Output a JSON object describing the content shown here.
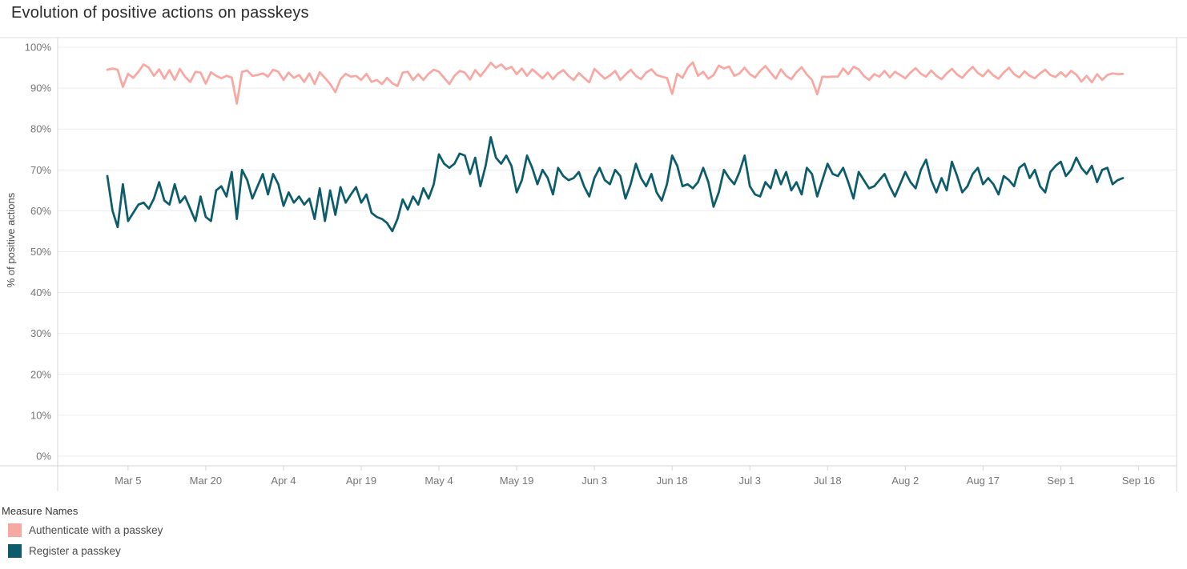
{
  "title": "Evolution of positive actions on passkeys",
  "legend": {
    "title": "Measure Names",
    "items": [
      {
        "label": "Authenticate with a passkey",
        "color": "#F8A8A2"
      },
      {
        "label": "Register a passkey",
        "color": "#0C5C6B"
      }
    ]
  },
  "chart_data": {
    "type": "line",
    "title": "Evolution of positive actions on passkeys",
    "xlabel": "",
    "ylabel": "% of positive actions",
    "ylim": [
      0,
      100
    ],
    "ytick_step": 10,
    "ytick_format": "percent",
    "grid": "horizontal",
    "legend_position": "bottom-left",
    "x_start_date": "Mar 1",
    "x_end_date": "Sep 13",
    "x_first_tick_day_offset": 4,
    "x_tick_interval_days": 15,
    "x_tick_labels": [
      "Mar 5",
      "Mar 20",
      "Apr 4",
      "Apr 19",
      "May 4",
      "May 19",
      "Jun 3",
      "Jun 18",
      "Jul 3",
      "Jul 18",
      "Aug 2",
      "Aug 17",
      "Sep 1",
      "Sep 16"
    ],
    "series": [
      {
        "name": "Authenticate with a passkey",
        "color": "#F8A8A2",
        "values": [
          94.5,
          94.8,
          94.5,
          90.3,
          93.5,
          92.5,
          94.0,
          95.8,
          95.0,
          93.0,
          94.6,
          92.3,
          94.4,
          92.0,
          94.7,
          92.8,
          91.5,
          94.0,
          93.8,
          91.1,
          93.9,
          93.0,
          92.4,
          93.0,
          92.6,
          86.2,
          94.0,
          94.3,
          93.0,
          93.2,
          93.6,
          92.8,
          94.5,
          94.0,
          92.0,
          93.8,
          92.5,
          93.2,
          91.5,
          93.6,
          91.0,
          93.9,
          92.5,
          91.0,
          89.0,
          92.2,
          93.5,
          92.8,
          93.0,
          92.0,
          93.5,
          91.5,
          92.0,
          91.0,
          92.5,
          91.2,
          90.5,
          93.8,
          94.0,
          92.0,
          93.4,
          92.0,
          93.5,
          94.5,
          94.0,
          92.5,
          91.0,
          93.0,
          94.2,
          93.8,
          92.1,
          94.4,
          92.9,
          94.5,
          96.2,
          95.0,
          95.8,
          94.6,
          95.2,
          93.4,
          94.8,
          93.0,
          94.6,
          93.5,
          92.4,
          93.8,
          92.2,
          93.6,
          94.4,
          93.0,
          92.0,
          93.7,
          92.5,
          91.4,
          94.7,
          93.5,
          92.3,
          93.1,
          94.2,
          92.0,
          93.3,
          94.5,
          93.0,
          92.2,
          93.8,
          94.6,
          93.2,
          92.8,
          92.5,
          88.6,
          93.5,
          92.5,
          95.0,
          96.3,
          93.0,
          94.0,
          92.3,
          93.2,
          95.5,
          94.8,
          95.3,
          93.0,
          93.6,
          95.0,
          93.4,
          92.6,
          94.2,
          95.4,
          93.8,
          92.3,
          94.6,
          93.0,
          92.2,
          93.9,
          95.1,
          93.3,
          92.0,
          88.5,
          92.8,
          92.7,
          92.8,
          92.8,
          94.8,
          93.4,
          95.2,
          94.6,
          93.0,
          92.0,
          93.4,
          92.8,
          94.2,
          92.6,
          94.0,
          93.2,
          92.4,
          93.8,
          94.9,
          93.5,
          92.8,
          94.3,
          93.0,
          92.2,
          93.6,
          94.7,
          93.3,
          92.5,
          94.0,
          95.2,
          93.7,
          92.9,
          94.4,
          93.1,
          92.3,
          93.8,
          95.0,
          93.4,
          92.6,
          94.1,
          93.0,
          92.4,
          93.6,
          94.5,
          93.2,
          92.7,
          93.9,
          92.8,
          94.2,
          93.3,
          91.6,
          93.0,
          91.4,
          93.4,
          92.0,
          93.2,
          93.6,
          93.4,
          93.5
        ]
      },
      {
        "name": "Register a passkey",
        "color": "#0C5C6B",
        "values": [
          68.5,
          60.0,
          56.0,
          66.5,
          57.5,
          59.5,
          61.5,
          62.0,
          60.5,
          63.0,
          67.0,
          62.5,
          61.5,
          66.5,
          62.0,
          63.5,
          60.5,
          57.5,
          63.5,
          58.5,
          57.5,
          65.0,
          66.0,
          63.5,
          69.5,
          58.0,
          70.0,
          67.5,
          63.0,
          66.0,
          69.0,
          64.0,
          69.0,
          66.5,
          61.2,
          64.5,
          62.0,
          63.5,
          61.5,
          63.0,
          58.0,
          65.5,
          57.5,
          65.0,
          59.0,
          65.8,
          62.0,
          64.0,
          65.8,
          62.0,
          64.0,
          59.5,
          58.5,
          58.0,
          57.0,
          55.0,
          58.0,
          62.8,
          60.3,
          63.5,
          61.5,
          65.5,
          63.0,
          66.5,
          73.8,
          71.5,
          70.5,
          71.5,
          74.0,
          73.5,
          69.0,
          73.0,
          66.0,
          71.0,
          78.0,
          73.0,
          71.5,
          73.5,
          71.0,
          64.5,
          67.5,
          73.5,
          70.5,
          66.5,
          70.0,
          68.0,
          64.0,
          70.5,
          68.5,
          67.5,
          68.0,
          69.5,
          66.0,
          63.5,
          68.0,
          70.5,
          67.5,
          66.5,
          70.0,
          68.5,
          63.0,
          66.5,
          71.5,
          68.0,
          66.0,
          69.0,
          64.5,
          62.5,
          66.5,
          73.5,
          71.0,
          66.0,
          66.5,
          65.5,
          67.0,
          70.5,
          67.0,
          61.0,
          64.5,
          70.0,
          68.0,
          66.5,
          69.5,
          73.5,
          66.0,
          64.0,
          63.5,
          67.0,
          65.5,
          70.0,
          66.5,
          69.5,
          65.0,
          67.0,
          64.0,
          70.5,
          69.0,
          63.5,
          67.5,
          71.5,
          69.0,
          68.5,
          70.5,
          67.0,
          63.0,
          69.5,
          67.5,
          65.5,
          66.0,
          67.5,
          69.0,
          66.0,
          63.5,
          66.5,
          69.5,
          67.0,
          65.5,
          70.0,
          72.5,
          67.5,
          64.5,
          68.0,
          65.0,
          72.0,
          68.5,
          64.5,
          66.0,
          69.0,
          70.5,
          66.5,
          68.0,
          66.5,
          64.0,
          68.5,
          67.5,
          66.0,
          70.5,
          71.5,
          68.0,
          70.0,
          66.0,
          64.5,
          69.5,
          71.0,
          72.0,
          68.5,
          70.0,
          73.0,
          70.5,
          69.0,
          71.0,
          67.0,
          70.0,
          70.5,
          66.5,
          67.5,
          68.0
        ]
      }
    ]
  }
}
